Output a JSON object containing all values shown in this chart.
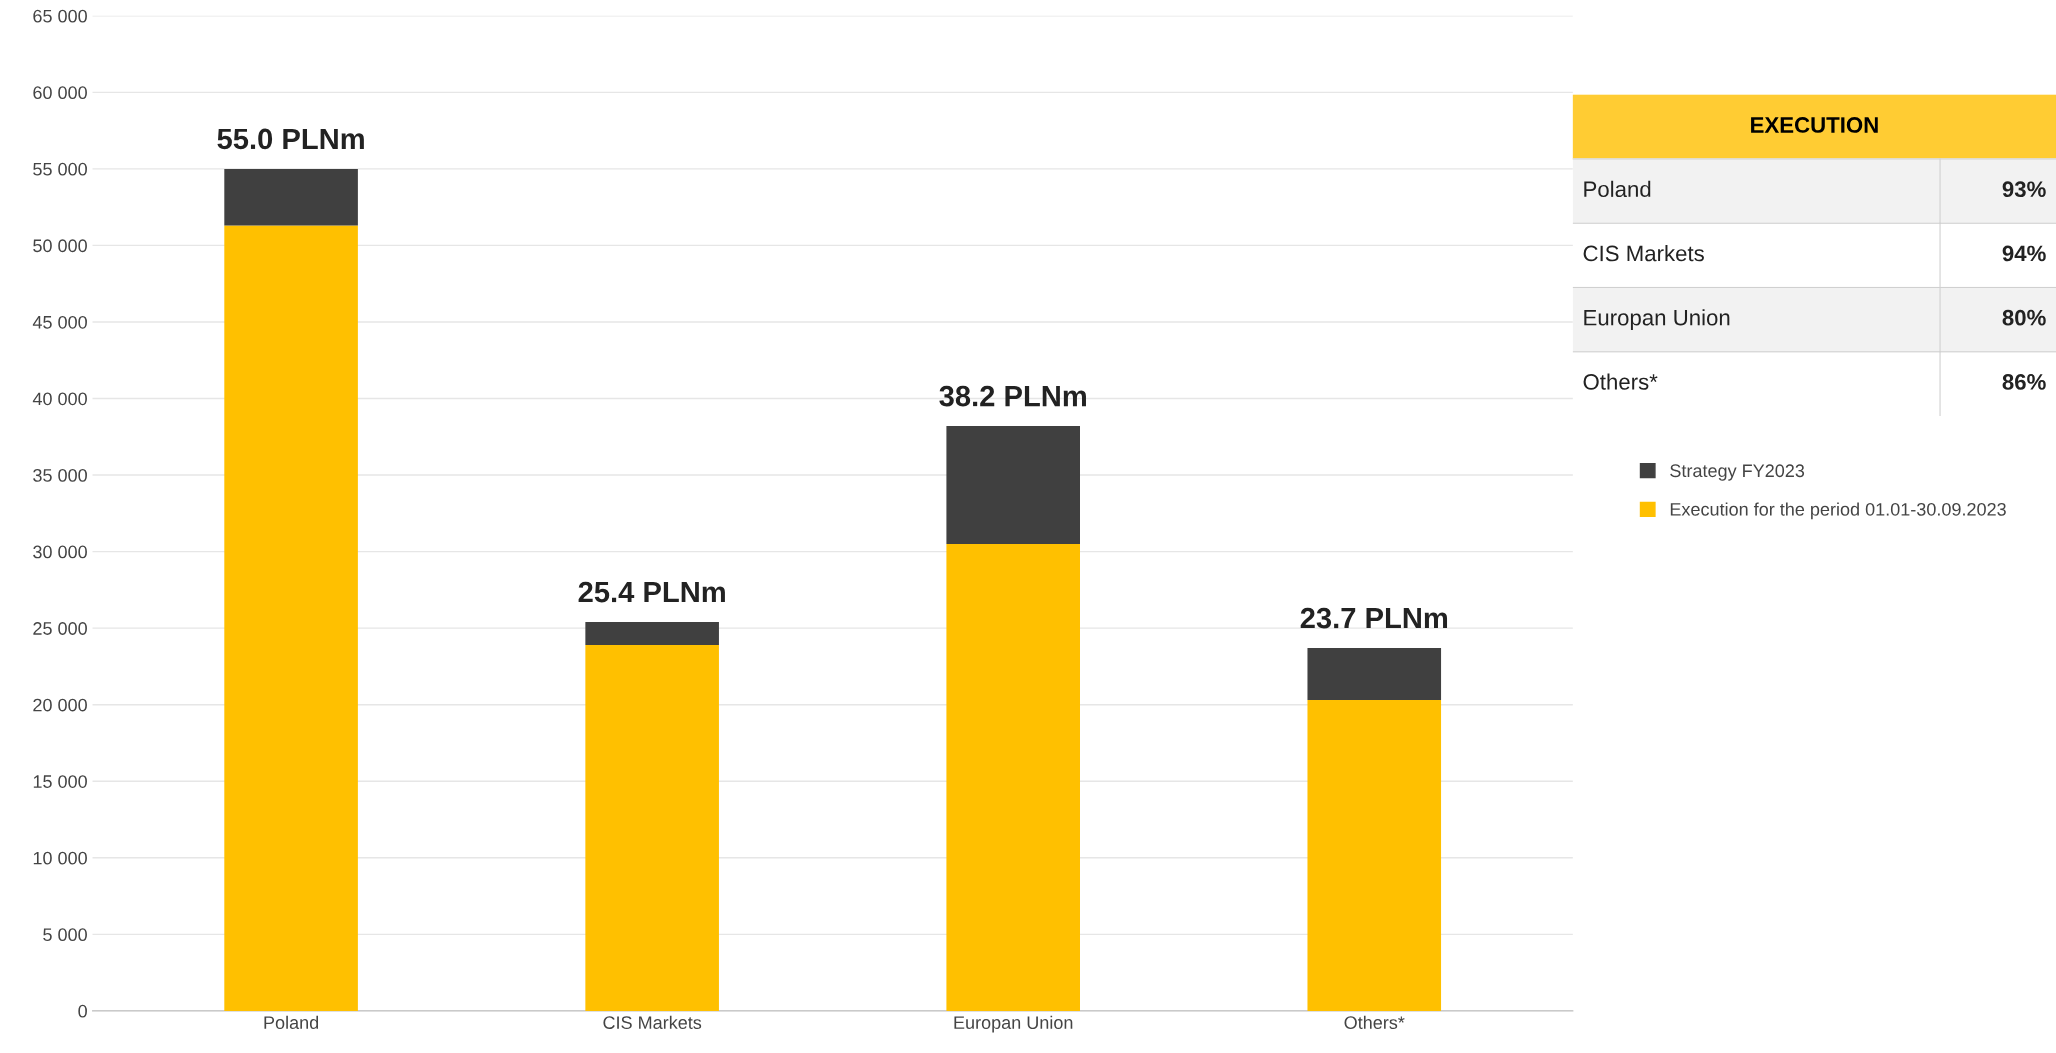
{
  "chart_data": [
    {
      "type": "bar",
      "stacked": true,
      "categories": [
        "Poland",
        "CIS Markets",
        "Europan Union",
        "Others*"
      ],
      "series": [
        {
          "name": "Execution for the period 01.01-30.09.2023",
          "color": "#ffc000",
          "values": [
            51300,
            23900,
            30500,
            20300
          ]
        },
        {
          "name": "Strategy FY2023",
          "color": "#404040",
          "values": [
            3700,
            1500,
            7700,
            3400
          ]
        }
      ],
      "annotations": [
        {
          "text": "55.0 PLNm",
          "x": "Poland",
          "y": 55000
        },
        {
          "text": "25.4 PLNm",
          "x": "CIS Markets",
          "y": 25400
        },
        {
          "text": "38.2 PLNm",
          "x": "Europan Union",
          "y": 38200
        },
        {
          "text": "23.7 PLNm",
          "x": "Others*",
          "y": 23700
        }
      ],
      "ylim": [
        0,
        65000
      ],
      "yticks": [
        0,
        {
          "value": 5000,
          "label": "5 000"
        },
        {
          "value": 10000,
          "label": "10 000"
        },
        {
          "value": 15000,
          "label": "15 000"
        },
        {
          "value": 20000,
          "label": "20 000"
        },
        {
          "value": 25000,
          "label": "25 000"
        },
        {
          "value": 30000,
          "label": "30 000"
        },
        {
          "value": 35000,
          "label": "35 000"
        },
        {
          "value": 40000,
          "label": "40 000"
        },
        {
          "value": 45000,
          "label": "45 000"
        },
        {
          "value": 50000,
          "label": "50 000"
        },
        {
          "value": 55000,
          "label": "55 000"
        },
        {
          "value": 60000,
          "label": "60 000"
        },
        {
          "value": 65000,
          "label": "65 000"
        }
      ],
      "grid": "y",
      "legend": "right"
    },
    {
      "type": "other",
      "title": "EXECUTION",
      "categories": [
        "Poland",
        "CIS Markets",
        "Europan Union",
        "Others*"
      ],
      "value_labels": [
        "93%",
        "94%",
        "80%",
        "86%"
      ]
    }
  ]
}
